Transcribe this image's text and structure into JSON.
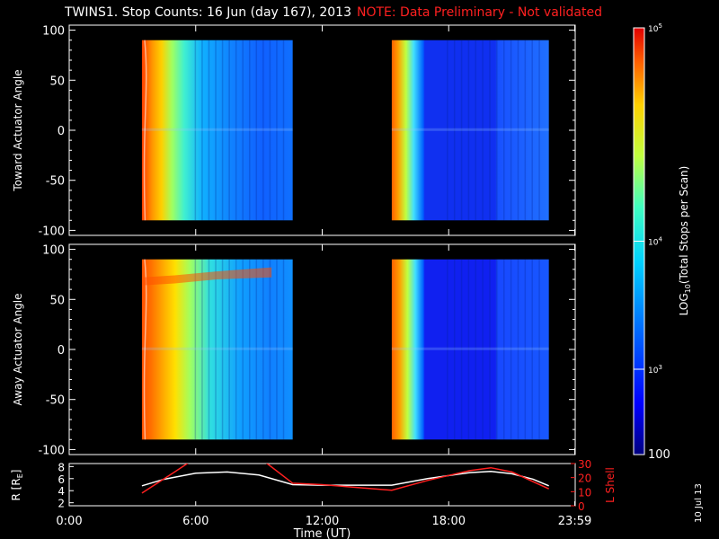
{
  "title": {
    "main": "TWINS1. Stop Counts: 16 Jun (day 167), 2013",
    "note": "NOTE: Data Preliminary - Not validated"
  },
  "date_stamp": "10 Jul 13",
  "colors": {
    "background": "#000000",
    "axes": "#ffffff",
    "note": "#ff2020",
    "r_line": "#ffffff",
    "lshell_line": "#ff2020"
  },
  "chart_data": [
    {
      "type": "heatmap",
      "name": "toward",
      "ylabel": "Toward Actuator Angle",
      "ylim": [
        -105,
        105
      ],
      "yticks": [
        100,
        50,
        0,
        -50,
        -100
      ],
      "x_hours": [
        0,
        24
      ],
      "data_blocks": [
        [
          3.45,
          10.6
        ],
        [
          15.3,
          22.75
        ]
      ],
      "value_scale": "log"
    },
    {
      "type": "heatmap",
      "name": "away",
      "ylabel": "Away Actuator Angle",
      "ylim": [
        -105,
        105
      ],
      "yticks": [
        100,
        50,
        0,
        -50,
        -100
      ],
      "x_hours": [
        0,
        24
      ],
      "data_blocks": [
        [
          3.45,
          10.6
        ],
        [
          15.3,
          22.75
        ]
      ],
      "value_scale": "log"
    },
    {
      "type": "line",
      "name": "ephemeris",
      "xlabel": "Time (UT)",
      "xticks": [
        "0:00",
        "6:00",
        "12:00",
        "18:00",
        "23:59"
      ],
      "xtick_hours": [
        0,
        6,
        12,
        18,
        23.98
      ],
      "y_left": {
        "label": "R [R",
        "label_sub": "E",
        "label_end": "]",
        "ylim": [
          1.5,
          8.5
        ],
        "ticks": [
          "8",
          "6",
          "4",
          "2"
        ]
      },
      "y_right": {
        "label": "L Shell",
        "ylim": [
          0,
          30
        ],
        "ticks": [
          "30",
          "20",
          "10",
          "0"
        ]
      },
      "series": [
        {
          "name": "R",
          "color": "#ffffff",
          "x": [
            3.45,
            4.5,
            6,
            7.5,
            9,
            10.6,
            12,
            14,
            15.3,
            17,
            19,
            20,
            21,
            22,
            22.75
          ],
          "y": [
            4.8,
            5.9,
            6.9,
            7.1,
            6.6,
            5.0,
            4.9,
            4.9,
            4.9,
            6.0,
            7.0,
            7.2,
            6.8,
            5.9,
            4.8
          ]
        },
        {
          "name": "L Shell",
          "color": "#ff2020",
          "x": [
            3.45,
            5.0,
            5.8,
            6.0,
            9.0,
            9.3,
            10.6,
            12,
            15.3,
            17,
            19,
            20,
            21,
            22.75
          ],
          "y": [
            9,
            24,
            32,
            33,
            33,
            31,
            16,
            15,
            11,
            18,
            25,
            27,
            24,
            12
          ]
        }
      ]
    }
  ],
  "colorbar": {
    "label_pre": "LOG",
    "label_sub": "10",
    "label_post": "(Total Stops per Scan)",
    "tick_base": "10",
    "ticks": [
      {
        "exp": "5",
        "frac": 1.0
      },
      {
        "exp": "4",
        "frac": 0.5
      },
      {
        "exp": "3",
        "frac": 0.2
      }
    ],
    "bottom_label": "100"
  }
}
